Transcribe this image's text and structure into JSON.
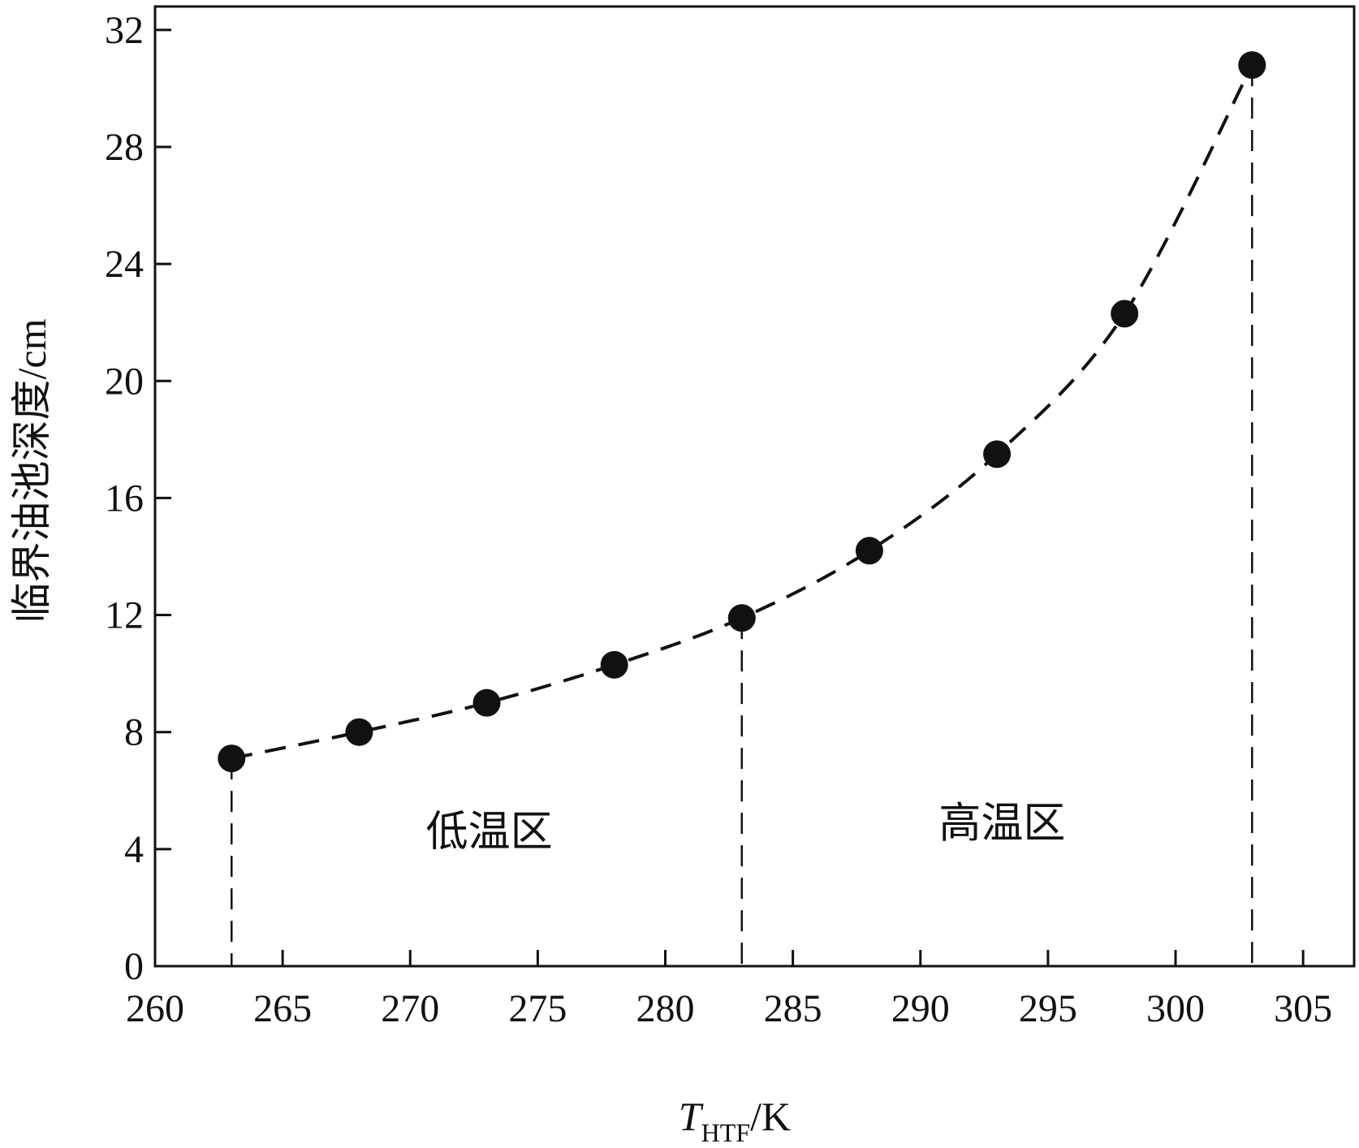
{
  "chart_data": {
    "type": "scatter",
    "x": [
      263,
      268,
      273,
      278,
      283,
      288,
      293,
      298,
      303
    ],
    "y": [
      7.1,
      8.0,
      9.0,
      10.3,
      11.9,
      14.2,
      17.5,
      22.3,
      30.8
    ],
    "xlim": [
      260,
      307
    ],
    "ylim": [
      0,
      32.8
    ],
    "xticks": [
      "260",
      "265",
      "270",
      "275",
      "280",
      "285",
      "290",
      "295",
      "300",
      "305"
    ],
    "yticks": [
      "0",
      "4",
      "8",
      "12",
      "16",
      "20",
      "24",
      "28",
      "32"
    ],
    "xlabel": {
      "main": "T",
      "sub": "HTF",
      "unit": "/K"
    },
    "ylabel": "临界油池深度/cm",
    "grid": false,
    "fit_line": "dashed",
    "region_boundaries_x": [
      263,
      283,
      303
    ],
    "regions": [
      {
        "label": "低温区",
        "x_center": 273.1,
        "y": 4.6
      },
      {
        "label": "高温区",
        "x_center": 293.2,
        "y": 4.9
      }
    ],
    "colors": {
      "marker": "#111111",
      "line": "#111111",
      "axis": "#111111"
    }
  }
}
